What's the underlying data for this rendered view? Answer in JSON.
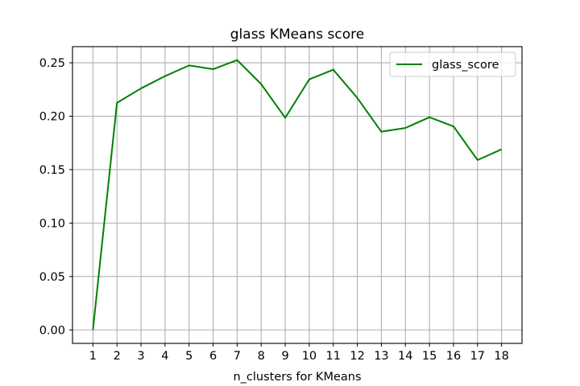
{
  "chart_data": {
    "type": "line",
    "title": "glass KMeans score",
    "xlabel": "n_clusters for KMeans",
    "ylabel": "",
    "x": [
      1,
      2,
      3,
      4,
      5,
      6,
      7,
      8,
      9,
      10,
      11,
      12,
      13,
      14,
      15,
      16,
      17,
      18
    ],
    "series": [
      {
        "name": "glass_score",
        "color": "#008000",
        "values": [
          0.0,
          0.2125,
          0.226,
          0.2375,
          0.2475,
          0.244,
          0.2525,
          0.23,
          0.1985,
          0.2345,
          0.2435,
          0.217,
          0.1855,
          0.189,
          0.199,
          0.1905,
          0.159,
          0.169
        ]
      }
    ],
    "xlim": [
      0.15,
      18.85
    ],
    "ylim": [
      -0.0126,
      0.2651
    ],
    "yticks": [
      0.0,
      0.05,
      0.1,
      0.15,
      0.2,
      0.25
    ],
    "ytick_labels": [
      "0.00",
      "0.05",
      "0.10",
      "0.15",
      "0.20",
      "0.25"
    ],
    "xticks": [
      1,
      2,
      3,
      4,
      5,
      6,
      7,
      8,
      9,
      10,
      11,
      12,
      13,
      14,
      15,
      16,
      17,
      18
    ],
    "xtick_labels": [
      "1",
      "2",
      "3",
      "4",
      "5",
      "6",
      "7",
      "8",
      "9",
      "10",
      "11",
      "12",
      "13",
      "14",
      "15",
      "16",
      "17",
      "18"
    ],
    "grid": true,
    "legend": "top-right"
  }
}
